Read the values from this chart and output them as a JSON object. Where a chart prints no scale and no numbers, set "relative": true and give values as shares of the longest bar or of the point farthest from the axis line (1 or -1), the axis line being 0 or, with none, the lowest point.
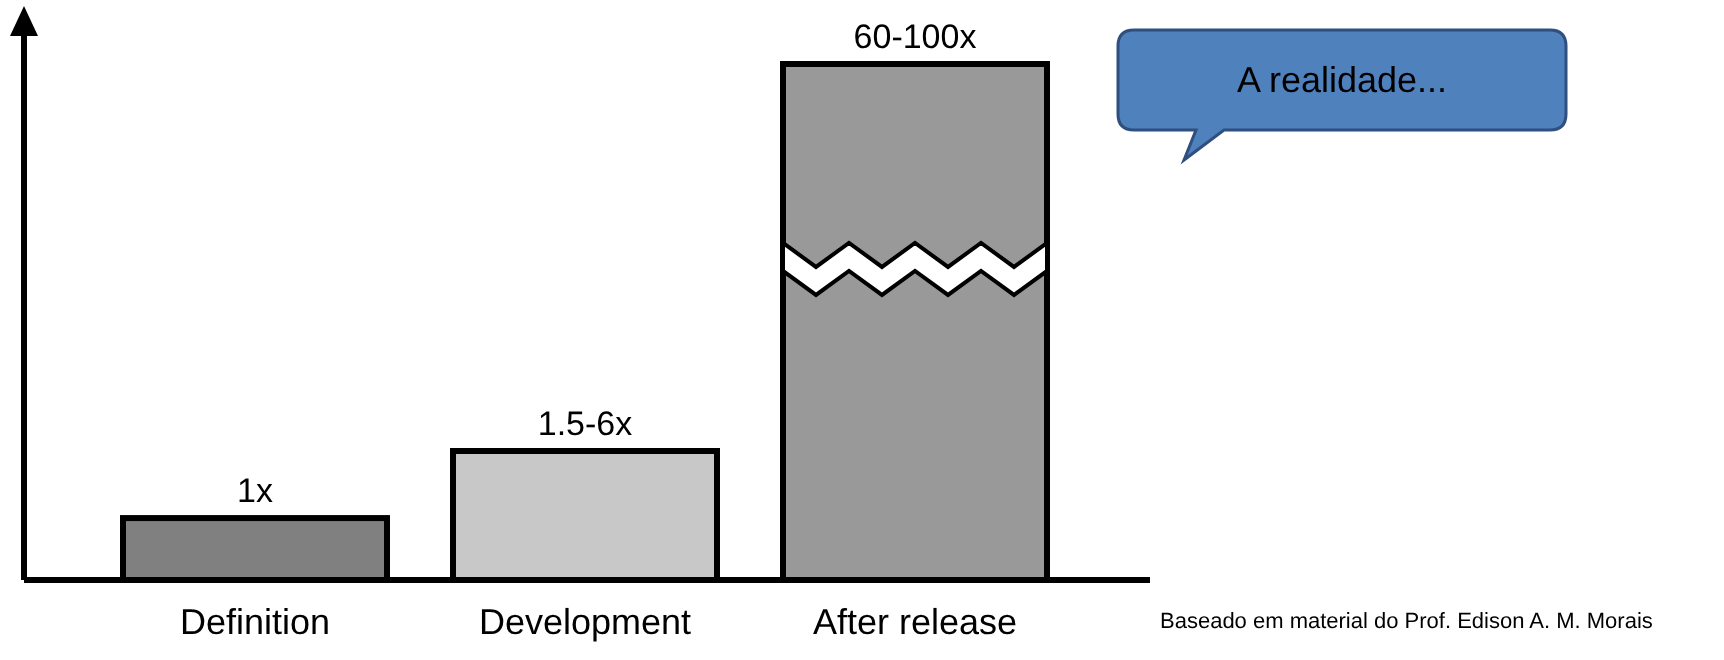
{
  "chart_data": {
    "type": "bar",
    "relative": true,
    "categories": [
      "Definition",
      "Development",
      "After release"
    ],
    "values": [
      0.12,
      0.25,
      1
    ],
    "colors": [
      "#808080",
      "#c8c8c8",
      "#999999"
    ],
    "annotations": [
      {
        "text": "1x",
        "x": "Definition",
        "y": 0.12
      },
      {
        "text": "1.5-6x",
        "x": "Development",
        "y": 0.25
      },
      {
        "text": "60-100x",
        "x": "After release",
        "y": 1
      },
      "A realidade...",
      "Baseado em material do Prof. Edison A. M. Morais"
    ]
  }
}
